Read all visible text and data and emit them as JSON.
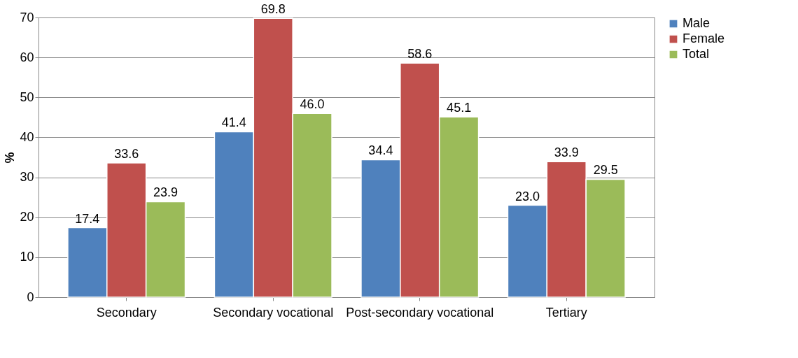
{
  "chart_data": {
    "type": "bar",
    "ylabel": "%",
    "categories": [
      "Secondary",
      "Secondary vocational",
      "Post-secondary vocational",
      "Tertiary"
    ],
    "series": [
      {
        "name": "Male",
        "color": "#4f81bd",
        "values": [
          17.4,
          41.4,
          34.4,
          23.0
        ],
        "value_labels": [
          "17.4",
          "41.4",
          "34.4",
          "23.0"
        ]
      },
      {
        "name": "Female",
        "color": "#c0504d",
        "values": [
          33.6,
          69.8,
          58.6,
          33.9
        ],
        "value_labels": [
          "33.6",
          "69.8",
          "58.6",
          "33.9"
        ]
      },
      {
        "name": "Total",
        "color": "#9bbb59",
        "values": [
          23.9,
          46.0,
          45.1,
          29.5
        ],
        "value_labels": [
          "23.9",
          "46.0",
          "45.1",
          "29.5"
        ]
      }
    ],
    "ylim": [
      0,
      70
    ],
    "yticks": [
      0,
      10,
      20,
      30,
      40,
      50,
      60,
      70
    ],
    "grid": "y",
    "legend": "right"
  }
}
